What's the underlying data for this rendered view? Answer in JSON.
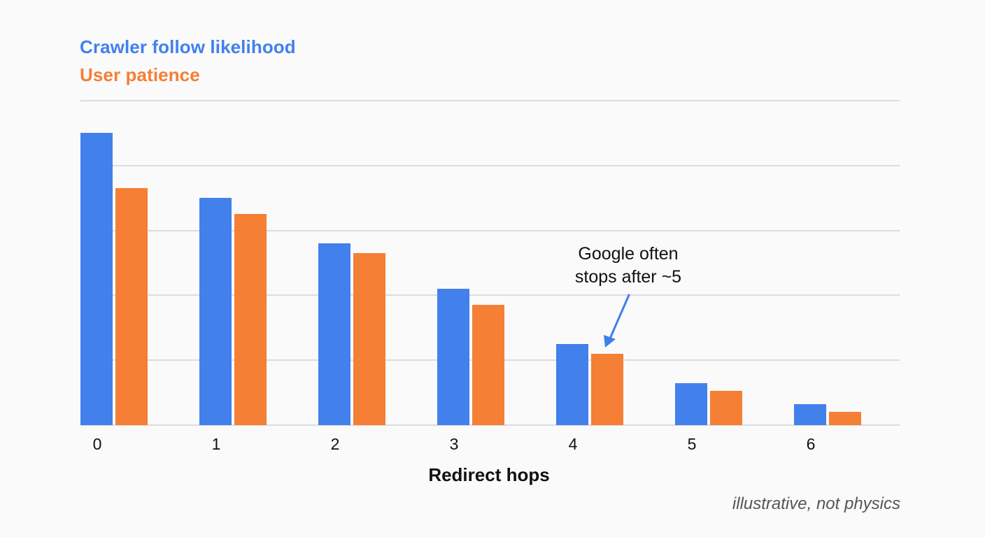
{
  "chart_data": {
    "type": "bar",
    "title": "",
    "xlabel": "Redirect hops",
    "ylabel": "",
    "categories": [
      "0",
      "1",
      "2",
      "3",
      "4",
      "5",
      "6"
    ],
    "series": [
      {
        "name": "Crawler follow likelihood",
        "color": "#4280ec",
        "values": [
          90,
          70,
          56,
          42,
          25,
          13,
          6.5
        ]
      },
      {
        "name": "User patience",
        "color": "#f47f35",
        "values": [
          73,
          65,
          53,
          37,
          22,
          10.5,
          4
        ]
      }
    ],
    "ylim": [
      0,
      100
    ],
    "yticks_visible": false,
    "grid": true,
    "gridline_count": 6,
    "legend_position": "top-left",
    "annotations": [
      {
        "text": "Google often stops after ~5",
        "line1": "Google often",
        "line2": "stops after ~5",
        "points_to": {
          "category": "4",
          "series": "User patience"
        },
        "arrow_color": "#3f7fe9"
      }
    ],
    "footnote": "illustrative, not physics"
  },
  "colors": {
    "background": "#fafafa",
    "grid": "#dcdcdc",
    "crawler": "#4280ec",
    "user": "#f47f35",
    "text": "#111111",
    "footnote": "#555555"
  }
}
